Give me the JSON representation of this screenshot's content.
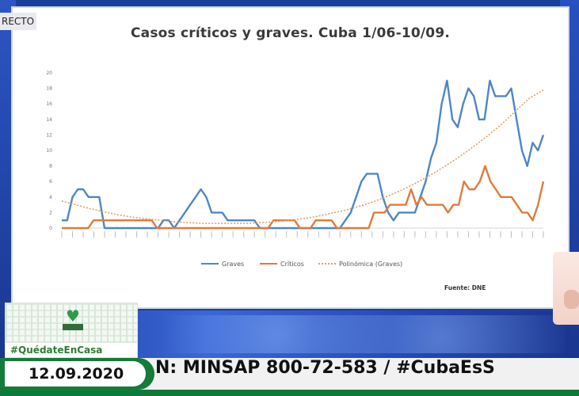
{
  "live_badge": "RECTO",
  "slide": {
    "title": "Casos críticos y graves. Cuba 1/06-10/09.",
    "source": "Fuente: DNE"
  },
  "chart_data": {
    "type": "line",
    "title": "Casos críticos y graves. Cuba 1/06-10/09.",
    "ylim": [
      0,
      20
    ],
    "yticks": [
      0,
      2,
      4,
      6,
      8,
      10,
      12,
      14,
      16,
      18,
      20
    ],
    "grid": false,
    "legend_position": "bottom",
    "series": [
      {
        "name": "Graves",
        "color": "#4f86c6",
        "values": [
          1,
          1,
          4,
          5,
          5,
          4,
          4,
          4,
          0,
          0,
          0,
          0,
          0,
          0,
          0,
          0,
          0,
          0,
          0,
          1,
          1,
          0,
          1,
          2,
          3,
          4,
          5,
          4,
          2,
          2,
          2,
          1,
          1,
          1,
          1,
          1,
          1,
          0,
          0,
          0,
          0,
          0,
          0,
          0,
          0,
          0,
          0,
          0,
          0,
          0,
          0,
          0,
          0,
          1,
          2,
          4,
          6,
          7,
          7,
          7,
          4,
          2,
          1,
          2,
          2,
          2,
          2,
          4,
          6,
          9,
          11,
          16,
          19,
          14,
          13,
          16,
          18,
          17,
          14,
          14,
          19,
          17,
          17,
          17,
          18,
          14,
          10,
          8,
          11,
          10,
          12
        ]
      },
      {
        "name": "Críticos",
        "color": "#e07a3a",
        "values": [
          0,
          0,
          0,
          0,
          0,
          0,
          1,
          1,
          1,
          1,
          1,
          1,
          1,
          1,
          1,
          1,
          1,
          1,
          0,
          0,
          0,
          0,
          0,
          0,
          0,
          0,
          0,
          0,
          0,
          0,
          0,
          0,
          0,
          0,
          0,
          0,
          0,
          0,
          0,
          0,
          1,
          1,
          1,
          1,
          1,
          0,
          0,
          0,
          1,
          1,
          1,
          1,
          0,
          0,
          0,
          0,
          0,
          0,
          0,
          2,
          2,
          2,
          3,
          3,
          3,
          3,
          5,
          3,
          4,
          3,
          3,
          3,
          3,
          2,
          3,
          3,
          6,
          5,
          5,
          6,
          8,
          6,
          5,
          4,
          4,
          4,
          3,
          2,
          2,
          1,
          3,
          6
        ]
      },
      {
        "name": "Polinómica (Graves)",
        "color": "#e0a060",
        "style": "dotted",
        "values": [
          3.5,
          3.0,
          2.5,
          2.1,
          1.7,
          1.4,
          1.2,
          1.0,
          0.8,
          0.7,
          0.6,
          0.6,
          0.6,
          0.6,
          0.7,
          0.8,
          1.0,
          1.2,
          1.5,
          1.9,
          2.3,
          2.8,
          3.4,
          4.1,
          4.9,
          5.8,
          6.8,
          7.9,
          9.1,
          10.4,
          11.8,
          13.3,
          15.0,
          16.7,
          17.8
        ]
      }
    ]
  },
  "overlay": {
    "hashtag_left": "#QuédateEnCasa",
    "date": "12.09.2020",
    "ticker": "N: MINSAP 800-72-583   /   #CubaEsS"
  }
}
